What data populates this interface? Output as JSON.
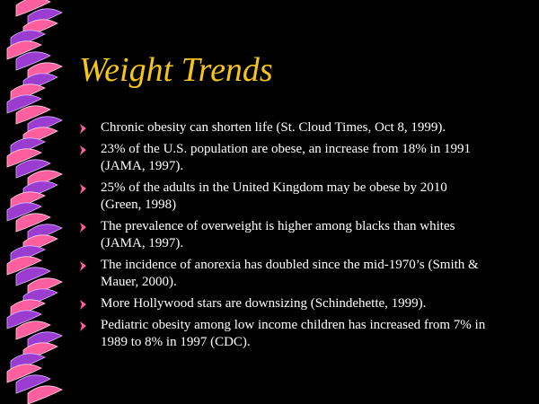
{
  "title": "Weight Trends",
  "bullets": [
    {
      "lines": [
        "Chronic obesity can shorten life (St. Cloud Times, Oct 8, 1999)."
      ]
    },
    {
      "lines": [
        "23% of the U.S. population are obese, an increase from 18% in 1991",
        "(JAMA, 1997)."
      ]
    },
    {
      "lines": [
        "25% of the adults in the United Kingdom may be obese by 2010",
        "(Green, 1998)"
      ]
    },
    {
      "lines": [
        "The prevalence of overweight is higher among blacks than whites",
        "(JAMA, 1997)."
      ]
    },
    {
      "lines": [
        "The incidence of anorexia has doubled since the mid-1970’s (Smith &",
        "Mauer, 2000)."
      ]
    },
    {
      "lines": [
        "More Hollywood stars are downsizing (Schindehette, 1999)."
      ]
    },
    {
      "lines": [
        "Pediatric obesity among low income children has increased from 7% in",
        "1989 to 8% in 1997 (CDC)."
      ]
    }
  ]
}
